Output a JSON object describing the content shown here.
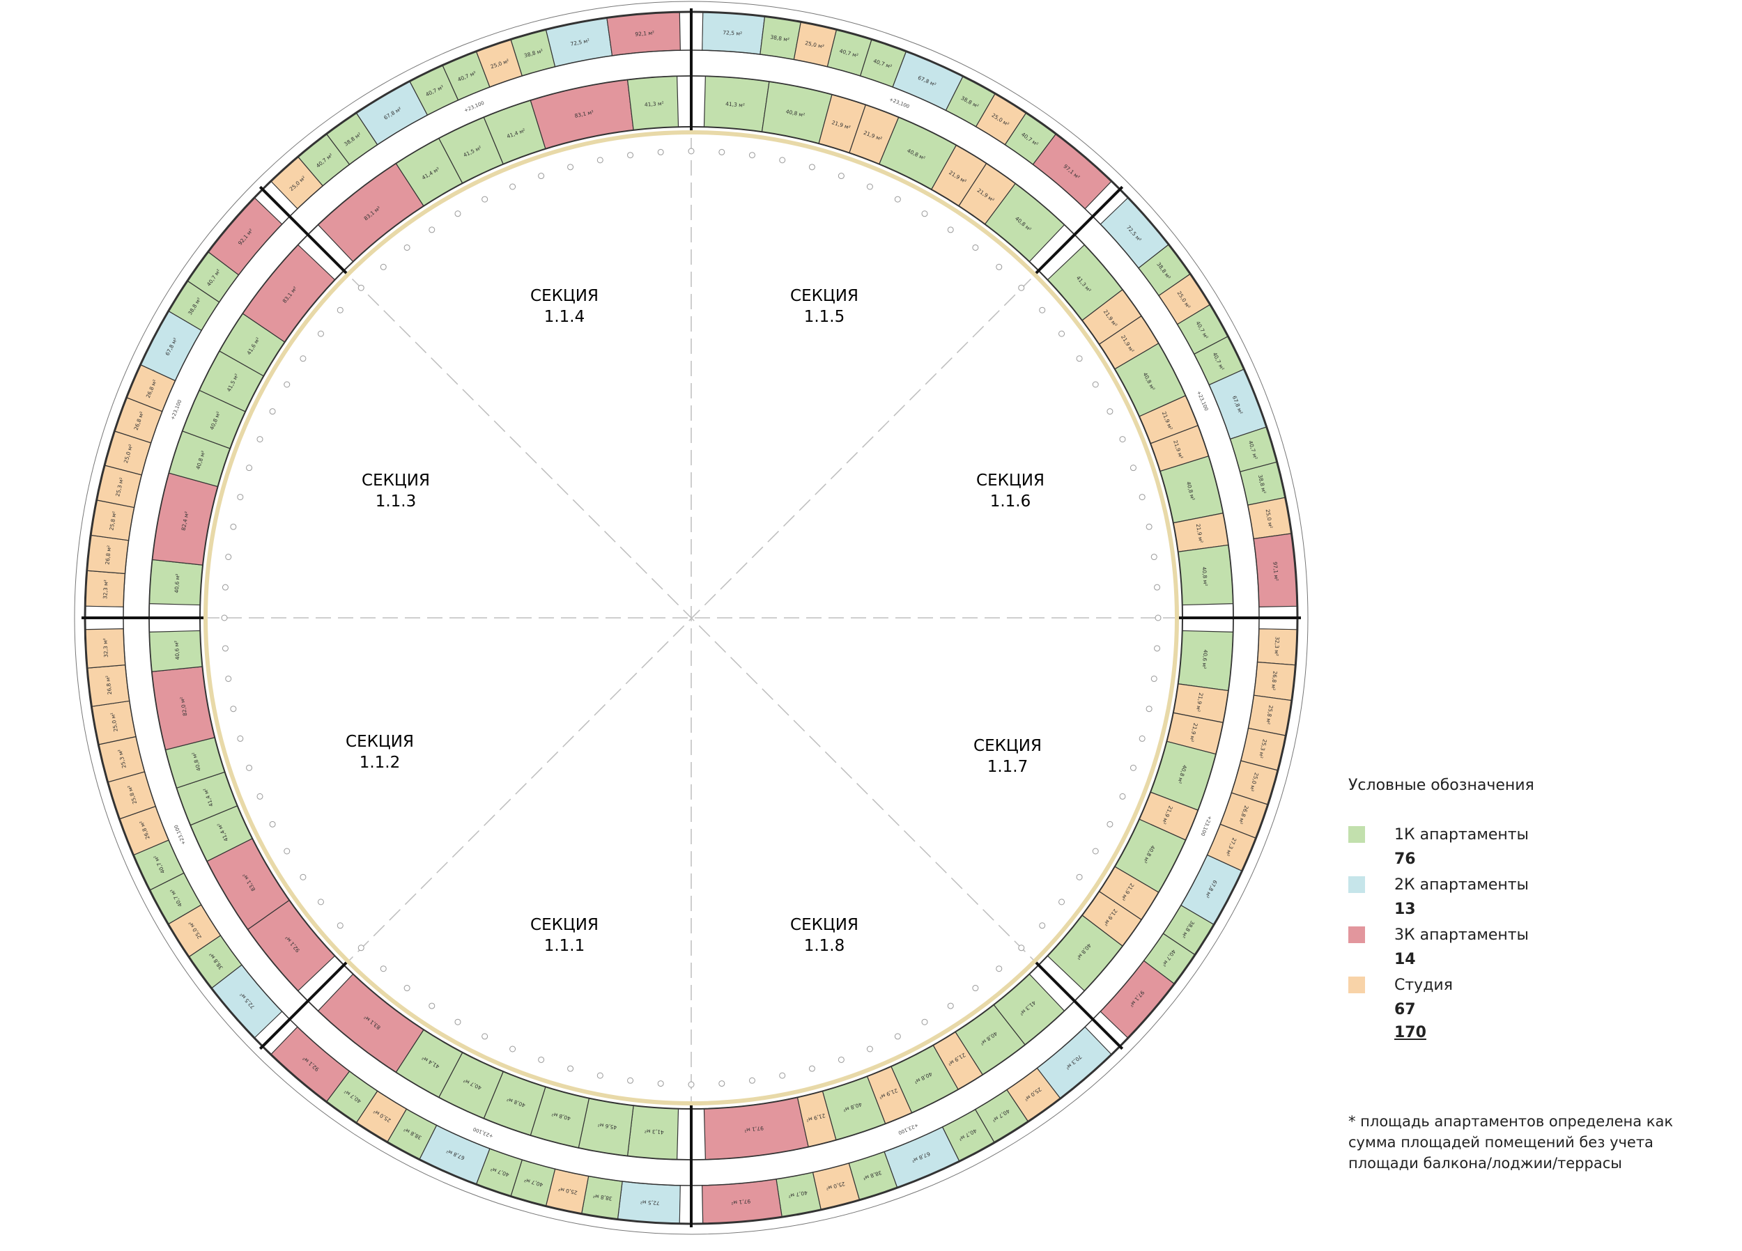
{
  "colors": {
    "k1": "#c2e0ad",
    "k2": "#c6e5ea",
    "k3": "#e2969d",
    "studio": "#f8d3a8",
    "wall": "#333333",
    "guide": "#bdbdbd"
  },
  "sections": [
    {
      "label": "СЕКЦИЯ",
      "number": "1.1.4"
    },
    {
      "label": "СЕКЦИЯ",
      "number": "1.1.5"
    },
    {
      "label": "СЕКЦИЯ",
      "number": "1.1.6"
    },
    {
      "label": "СЕКЦИЯ",
      "number": "1.1.7"
    },
    {
      "label": "СЕКЦИЯ",
      "number": "1.1.8"
    },
    {
      "label": "СЕКЦИЯ",
      "number": "1.1.1"
    },
    {
      "label": "СЕКЦИЯ",
      "number": "1.1.2"
    },
    {
      "label": "СЕКЦИЯ",
      "number": "1.1.3"
    }
  ],
  "section_units": {
    "s114": [
      {
        "t": "studio",
        "a": "25,0 м²"
      },
      {
        "t": "k1",
        "a": "40,7 м²"
      },
      {
        "t": "k1",
        "a": "38,8 м²"
      },
      {
        "t": "k2",
        "a": "67,8 м²"
      },
      {
        "t": "k1",
        "a": "40,7 м²"
      },
      {
        "t": "k1",
        "a": "40,7 м²"
      },
      {
        "t": "studio",
        "a": "25,0 м²"
      },
      {
        "t": "k1",
        "a": "38,8 м²"
      },
      {
        "t": "k2",
        "a": "72,5 м²"
      },
      {
        "t": "k3",
        "a": "92,1 м²"
      }
    ],
    "s115": [
      {
        "t": "k2",
        "a": "72,5 м²"
      },
      {
        "t": "k1",
        "a": "38,8 м²"
      },
      {
        "t": "studio",
        "a": "25,0 м²"
      },
      {
        "t": "k1",
        "a": "40,7 м²"
      },
      {
        "t": "k1",
        "a": "40,7 м²"
      },
      {
        "t": "k2",
        "a": "67,8 м²"
      },
      {
        "t": "k1",
        "a": "38,8 м²"
      },
      {
        "t": "studio",
        "a": "25,0 м²"
      },
      {
        "t": "k1",
        "a": "40,7 м²"
      },
      {
        "t": "k3",
        "a": "97,1 м²"
      }
    ],
    "s116": [
      {
        "t": "k2",
        "a": "72,5 м²"
      },
      {
        "t": "k1",
        "a": "38,8 м²"
      },
      {
        "t": "studio",
        "a": "25,0 м²"
      },
      {
        "t": "k1",
        "a": "40,7 м²"
      },
      {
        "t": "k1",
        "a": "40,7 м²"
      },
      {
        "t": "k2",
        "a": "67,8 м²"
      },
      {
        "t": "k1",
        "a": "40,7 м²"
      },
      {
        "t": "k1",
        "a": "38,8 м²"
      },
      {
        "t": "studio",
        "a": "25,0 м²"
      },
      {
        "t": "k3",
        "a": "97,1 м²"
      }
    ],
    "s117": [
      {
        "t": "studio",
        "a": "32,3 м²"
      },
      {
        "t": "studio",
        "a": "26,8 м²"
      },
      {
        "t": "studio",
        "a": "25,8 м²"
      },
      {
        "t": "studio",
        "a": "25,3 м²"
      },
      {
        "t": "studio",
        "a": "25,0 м²"
      },
      {
        "t": "studio",
        "a": "26,8 м²"
      },
      {
        "t": "studio",
        "a": "27,3 м²"
      },
      {
        "t": "k2",
        "a": "67,8 м²"
      },
      {
        "t": "k1",
        "a": "38,8 м²"
      },
      {
        "t": "k1",
        "a": "40,7 м²"
      },
      {
        "t": "k3",
        "a": "97,1 м²"
      }
    ],
    "s118": [
      {
        "t": "k2",
        "a": "70,3 м²"
      },
      {
        "t": "studio",
        "a": "25,0 м²"
      },
      {
        "t": "k1",
        "a": "40,7 м²"
      },
      {
        "t": "k1",
        "a": "40,7 м²"
      },
      {
        "t": "k2",
        "a": "67,8 м²"
      },
      {
        "t": "k1",
        "a": "38,8 м²"
      },
      {
        "t": "studio",
        "a": "25,0 м²"
      },
      {
        "t": "k1",
        "a": "40,7 м²"
      },
      {
        "t": "k3",
        "a": "97,1 м²"
      }
    ],
    "s111": [
      {
        "t": "k2",
        "a": "72,5 м²"
      },
      {
        "t": "k1",
        "a": "38,8 м²"
      },
      {
        "t": "studio",
        "a": "25,0 м²"
      },
      {
        "t": "k1",
        "a": "40,7 м²"
      },
      {
        "t": "k1",
        "a": "40,7 м²"
      },
      {
        "t": "k2",
        "a": "67,8 м²"
      },
      {
        "t": "k1",
        "a": "38,8 м²"
      },
      {
        "t": "studio",
        "a": "25,0 м²"
      },
      {
        "t": "k1",
        "a": "40,7 м²"
      },
      {
        "t": "k3",
        "a": "92,1 м²"
      }
    ],
    "s112": [
      {
        "t": "k2",
        "a": "72,5 м²"
      },
      {
        "t": "k1",
        "a": "38,8 м²"
      },
      {
        "t": "studio",
        "a": "25,0 м²"
      },
      {
        "t": "k1",
        "a": "40,7 м²"
      },
      {
        "t": "k1",
        "a": "40,7 м²"
      },
      {
        "t": "studio",
        "a": "26,8 м²"
      },
      {
        "t": "studio",
        "a": "25,8 м²"
      },
      {
        "t": "studio",
        "a": "25,3 м²"
      },
      {
        "t": "studio",
        "a": "25,0 м²"
      },
      {
        "t": "studio",
        "a": "26,8 м²"
      },
      {
        "t": "studio",
        "a": "32,3 м²"
      }
    ],
    "s113": [
      {
        "t": "studio",
        "a": "32,3 м²"
      },
      {
        "t": "studio",
        "a": "26,8 м²"
      },
      {
        "t": "studio",
        "a": "25,8 м²"
      },
      {
        "t": "studio",
        "a": "25,3 м²"
      },
      {
        "t": "studio",
        "a": "25,0 м²"
      },
      {
        "t": "studio",
        "a": "26,8 м²"
      },
      {
        "t": "studio",
        "a": "26,8 м²"
      },
      {
        "t": "k2",
        "a": "67,8 м²"
      },
      {
        "t": "k1",
        "a": "38,8 м²"
      },
      {
        "t": "k1",
        "a": "40,7 м²"
      },
      {
        "t": "k3",
        "a": "92,1 м²"
      }
    ]
  },
  "inner_units": {
    "s114": [
      {
        "t": "k3",
        "a": "83,1 м²"
      },
      {
        "t": "k1",
        "a": "41,4 м²"
      },
      {
        "t": "k1",
        "a": "41,5 м²"
      },
      {
        "t": "k1",
        "a": "41,4 м²"
      },
      {
        "t": "k3",
        "a": "83,1 м²"
      },
      {
        "t": "k1",
        "a": "41,3 м²"
      }
    ],
    "s115": [
      {
        "t": "k1",
        "a": "41,3 м²"
      },
      {
        "t": "k1",
        "a": "40,8 м²"
      },
      {
        "t": "studio",
        "a": "21,9 м²"
      },
      {
        "t": "studio",
        "a": "21,9 м²"
      },
      {
        "t": "k1",
        "a": "40,8 м²"
      },
      {
        "t": "studio",
        "a": "21,9 м²"
      },
      {
        "t": "studio",
        "a": "21,9 м²"
      },
      {
        "t": "k1",
        "a": "40,8 м²"
      }
    ],
    "s116": [
      {
        "t": "k1",
        "a": "41,3 м²"
      },
      {
        "t": "studio",
        "a": "21,9 м²"
      },
      {
        "t": "studio",
        "a": "21,9 м²"
      },
      {
        "t": "k1",
        "a": "40,8 м²"
      },
      {
        "t": "studio",
        "a": "21,9 м²"
      },
      {
        "t": "studio",
        "a": "21,9 м²"
      },
      {
        "t": "k1",
        "a": "40,8 м²"
      },
      {
        "t": "studio",
        "a": "21,9 м²"
      },
      {
        "t": "k1",
        "a": "40,8 м²"
      }
    ],
    "s117": [
      {
        "t": "k1",
        "a": "40,6 м²"
      },
      {
        "t": "studio",
        "a": "21,9 м²"
      },
      {
        "t": "studio",
        "a": "21,9 м²"
      },
      {
        "t": "k1",
        "a": "40,8 м²"
      },
      {
        "t": "studio",
        "a": "21,9 м²"
      },
      {
        "t": "k1",
        "a": "40,8 м²"
      },
      {
        "t": "studio",
        "a": "21,9 м²"
      },
      {
        "t": "studio",
        "a": "21,9 м²"
      },
      {
        "t": "k1",
        "a": "40,8 м²"
      }
    ],
    "s118": [
      {
        "t": "k1",
        "a": "41,3 м²"
      },
      {
        "t": "k1",
        "a": "40,8 м²"
      },
      {
        "t": "studio",
        "a": "21,9 м²"
      },
      {
        "t": "k1",
        "a": "40,8 м²"
      },
      {
        "t": "studio",
        "a": "21,9 м²"
      },
      {
        "t": "k1",
        "a": "40,8 м²"
      },
      {
        "t": "studio",
        "a": "21,9 м²"
      },
      {
        "t": "k3",
        "a": "97,1 м²"
      }
    ],
    "s111": [
      {
        "t": "k1",
        "a": "41,3 м²"
      },
      {
        "t": "k1",
        "a": "45,6 м²"
      },
      {
        "t": "k1",
        "a": "40,8 м²"
      },
      {
        "t": "k1",
        "a": "40,8 м²"
      },
      {
        "t": "k1",
        "a": "40,7 м²"
      },
      {
        "t": "k1",
        "a": "41,4 м²"
      },
      {
        "t": "k3",
        "a": "83,1 м²"
      }
    ],
    "s112": [
      {
        "t": "k3",
        "a": "92,1 м²"
      },
      {
        "t": "k3",
        "a": "83,1 м²"
      },
      {
        "t": "k1",
        "a": "41,4 м²"
      },
      {
        "t": "k1",
        "a": "41,4 м²"
      },
      {
        "t": "k1",
        "a": "40,8 м²"
      },
      {
        "t": "k3",
        "a": "82,0 м²"
      },
      {
        "t": "k1",
        "a": "40,6 м²"
      }
    ],
    "s113": [
      {
        "t": "k1",
        "a": "40,6 м²"
      },
      {
        "t": "k3",
        "a": "82,4 м²"
      },
      {
        "t": "k1",
        "a": "40,8 м²"
      },
      {
        "t": "k1",
        "a": "40,8 м²"
      },
      {
        "t": "k1",
        "a": "41,5 м²"
      },
      {
        "t": "k1",
        "a": "41,6 м²"
      },
      {
        "t": "k3",
        "a": "83,1 м²"
      }
    ]
  },
  "level_mark": "+23,100",
  "legend": {
    "title": "Условные обозначения",
    "items": [
      {
        "label": "1К апартаменты",
        "count": "76",
        "color": "#c2e0ad"
      },
      {
        "label": "2К апартаменты",
        "count": "13",
        "color": "#c6e5ea"
      },
      {
        "label": "3К апартаменты",
        "count": "14",
        "color": "#e2969d"
      },
      {
        "label": "Студия",
        "count": "67",
        "color": "#f8d3a8"
      }
    ],
    "total": "170"
  },
  "note": "* площадь апартаментов определена как сумма площадей помещений без учета площади балкона/лоджии/террасы"
}
